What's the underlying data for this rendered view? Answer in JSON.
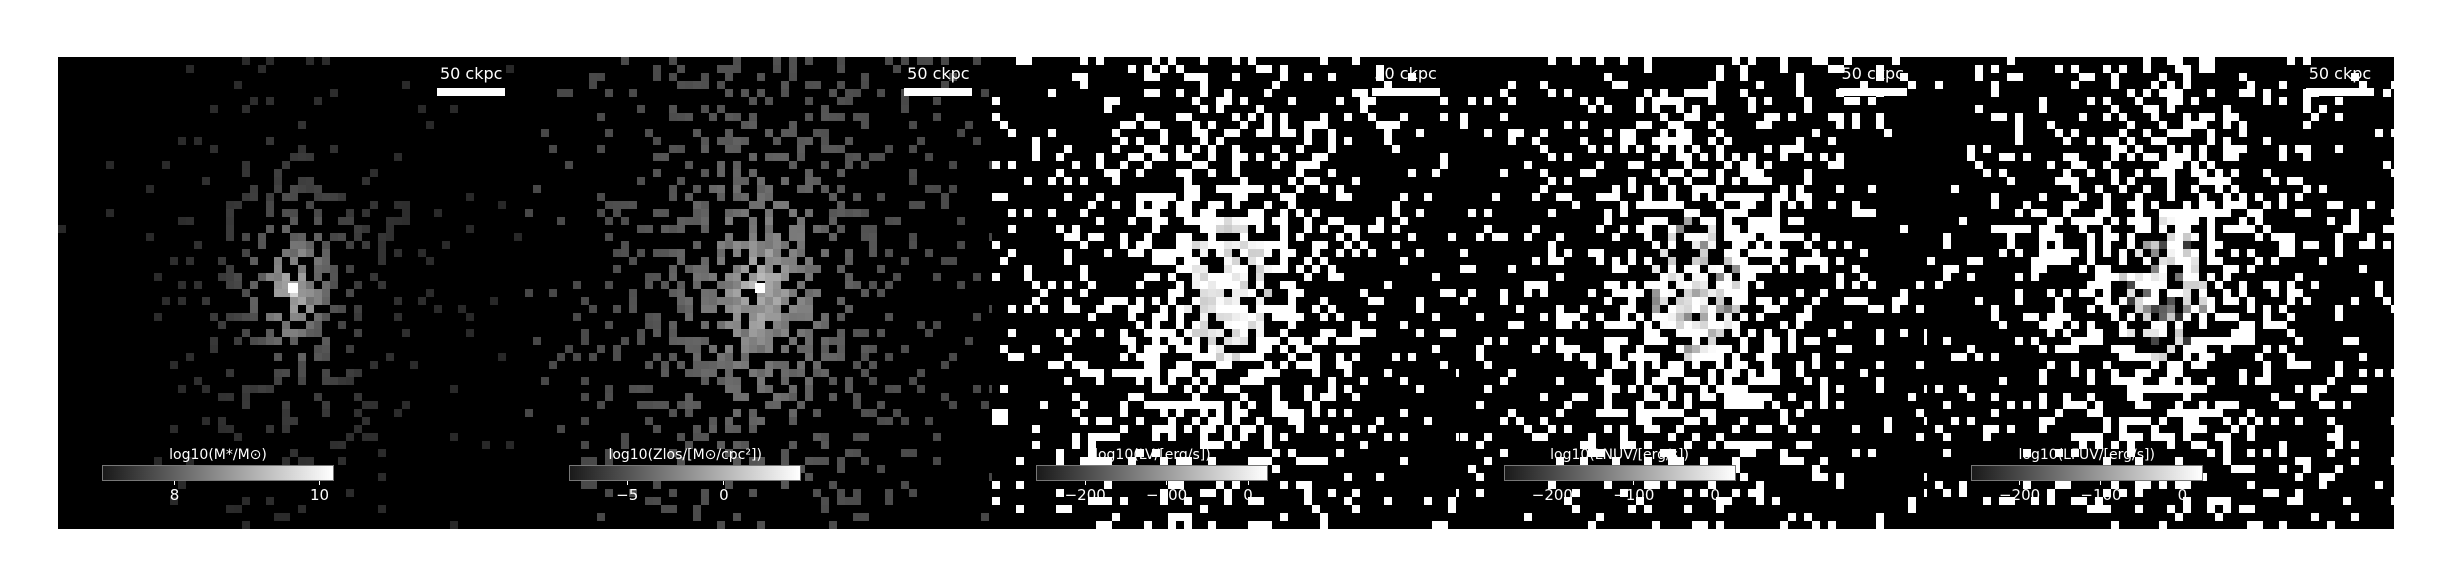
{
  "figure": {
    "panels": [
      {
        "id": "stellar-mass",
        "scale_label": "50 ckpc",
        "colorbar_label": "log10(M*/M⊙)",
        "ticks": [
          "8",
          "10"
        ],
        "tick_values": [
          8,
          10
        ],
        "range": [
          7,
          10.2
        ],
        "seed": 11,
        "style": "mass"
      },
      {
        "id": "metal-surface-density",
        "scale_label": "50 ckpc",
        "colorbar_label": "log10(Zlos/[M⊙/cpc²])",
        "ticks": [
          "−5",
          "0"
        ],
        "tick_values": [
          -5,
          0
        ],
        "range": [
          -8,
          4
        ],
        "seed": 23,
        "style": "metal"
      },
      {
        "id": "luminosity-v",
        "scale_label": "50 ckpc",
        "colorbar_label": "log10(LV/[erg/s])",
        "ticks": [
          "−200",
          "−100",
          "0"
        ],
        "tick_values": [
          -200,
          -100,
          0
        ],
        "range": [
          -260,
          25
        ],
        "seed": 37,
        "style": "lum"
      },
      {
        "id": "luminosity-nuv",
        "scale_label": "50 ckpc",
        "colorbar_label": "log10(LNUV/[erg/s])",
        "ticks": [
          "−200",
          "−100",
          "0"
        ],
        "tick_values": [
          -200,
          -100,
          0
        ],
        "range": [
          -260,
          25
        ],
        "seed": 53,
        "style": "nuv"
      },
      {
        "id": "luminosity-fuv",
        "scale_label": "50 ckpc",
        "colorbar_label": "log10(LFUV/[erg/s])",
        "ticks": [
          "−200",
          "−100",
          "0"
        ],
        "tick_values": [
          -200,
          -100,
          0
        ],
        "range": [
          -260,
          25
        ],
        "seed": 71,
        "style": "fuv"
      }
    ]
  }
}
